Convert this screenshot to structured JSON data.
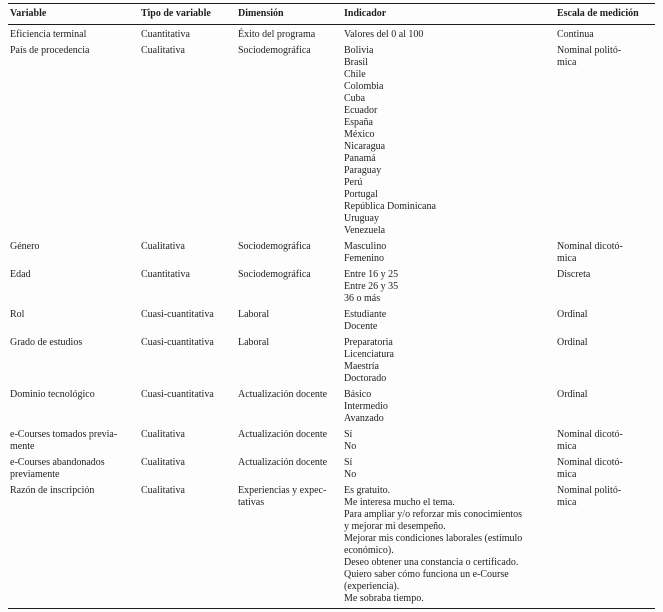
{
  "table": {
    "columns": [
      "Variable",
      "Tipo de variable",
      "Dimensión",
      "Indicador",
      "Escala de medición"
    ],
    "rows": [
      {
        "variable": [
          "Eficiencia terminal"
        ],
        "tipo": [
          "Cuantitativa"
        ],
        "dimension": [
          "Éxito del programa"
        ],
        "indicador": [
          "Valores del 0 al 100"
        ],
        "escala": [
          "Continua"
        ]
      },
      {
        "variable": [
          "País de procedencia"
        ],
        "tipo": [
          "Cualitativa"
        ],
        "dimension": [
          "Sociodemográfica"
        ],
        "indicador": [
          "Bolivia",
          "Brasil",
          "Chile",
          "Colombia",
          "Cuba",
          "Ecuador",
          "España",
          "México",
          "Nicaragua",
          "Panamá",
          "Paraguay",
          "Perú",
          "Portugal",
          "República Dominicana",
          "Uruguay",
          "Venezuela"
        ],
        "escala": [
          "Nominal politó-",
          "mica"
        ]
      },
      {
        "variable": [
          "Género"
        ],
        "tipo": [
          "Cualitativa"
        ],
        "dimension": [
          "Sociodemográfica"
        ],
        "indicador": [
          "Masculino",
          "Femenino"
        ],
        "escala": [
          "Nominal dicotó-",
          "mica"
        ]
      },
      {
        "variable": [
          "Edad"
        ],
        "tipo": [
          "Cuantitativa"
        ],
        "dimension": [
          "Sociodemográfica"
        ],
        "indicador": [
          "Entre 16 y 25",
          "Entre 26 y 35",
          "36 o más"
        ],
        "escala": [
          "Discreta"
        ]
      },
      {
        "variable": [
          "Rol"
        ],
        "tipo": [
          "Cuasi-cuantitativa"
        ],
        "dimension": [
          "Laboral"
        ],
        "indicador": [
          "Estudiante",
          "Docente"
        ],
        "escala": [
          "Ordinal"
        ]
      },
      {
        "variable": [
          "Grado de estudios"
        ],
        "tipo": [
          "Cuasi-cuantitativa"
        ],
        "dimension": [
          "Laboral"
        ],
        "indicador": [
          "Preparatoria",
          "Licenciatura",
          "Maestría",
          "Doctorado"
        ],
        "escala": [
          "Ordinal"
        ]
      },
      {
        "variable": [
          "Dominio tecnológico"
        ],
        "tipo": [
          "Cuasi-cuantitativa"
        ],
        "dimension": [
          "Actualización docente"
        ],
        "indicador": [
          "Básico",
          "Intermedio",
          "Avanzado"
        ],
        "escala": [
          "Ordinal"
        ]
      },
      {
        "variable": [
          "e-Courses tomados previa-",
          "mente"
        ],
        "tipo": [
          "Cualitativa"
        ],
        "dimension": [
          "Actualización docente"
        ],
        "indicador": [
          "Sí",
          "No"
        ],
        "escala": [
          "Nominal dicotó-",
          "mica"
        ]
      },
      {
        "variable": [
          "e-Courses abandonados",
          "previamente"
        ],
        "tipo": [
          "Cualitativa"
        ],
        "dimension": [
          "Actualización docente"
        ],
        "indicador": [
          "Sí",
          "No"
        ],
        "escala": [
          "Nominal dicotó-",
          "mica"
        ]
      },
      {
        "variable": [
          "Razón de inscripción"
        ],
        "tipo": [
          "Cualitativa"
        ],
        "dimension": [
          "Experiencias y expec-",
          "tativas"
        ],
        "indicador": [
          "Es gratuito.",
          "Me interesa mucho el tema.",
          "Para ampliar y/o reforzar mis conocimientos",
          "y mejorar mi desempeño.",
          "Mejorar mis condiciones laborales (estímulo",
          "económico).",
          "Deseo obtener una constancia o certificado.",
          "Quiero saber cómo funciona un e-Course",
          "(experiencia).",
          "Me sobraba tiempo."
        ],
        "escala": [
          "Nominal politó-",
          "mica"
        ]
      }
    ]
  }
}
